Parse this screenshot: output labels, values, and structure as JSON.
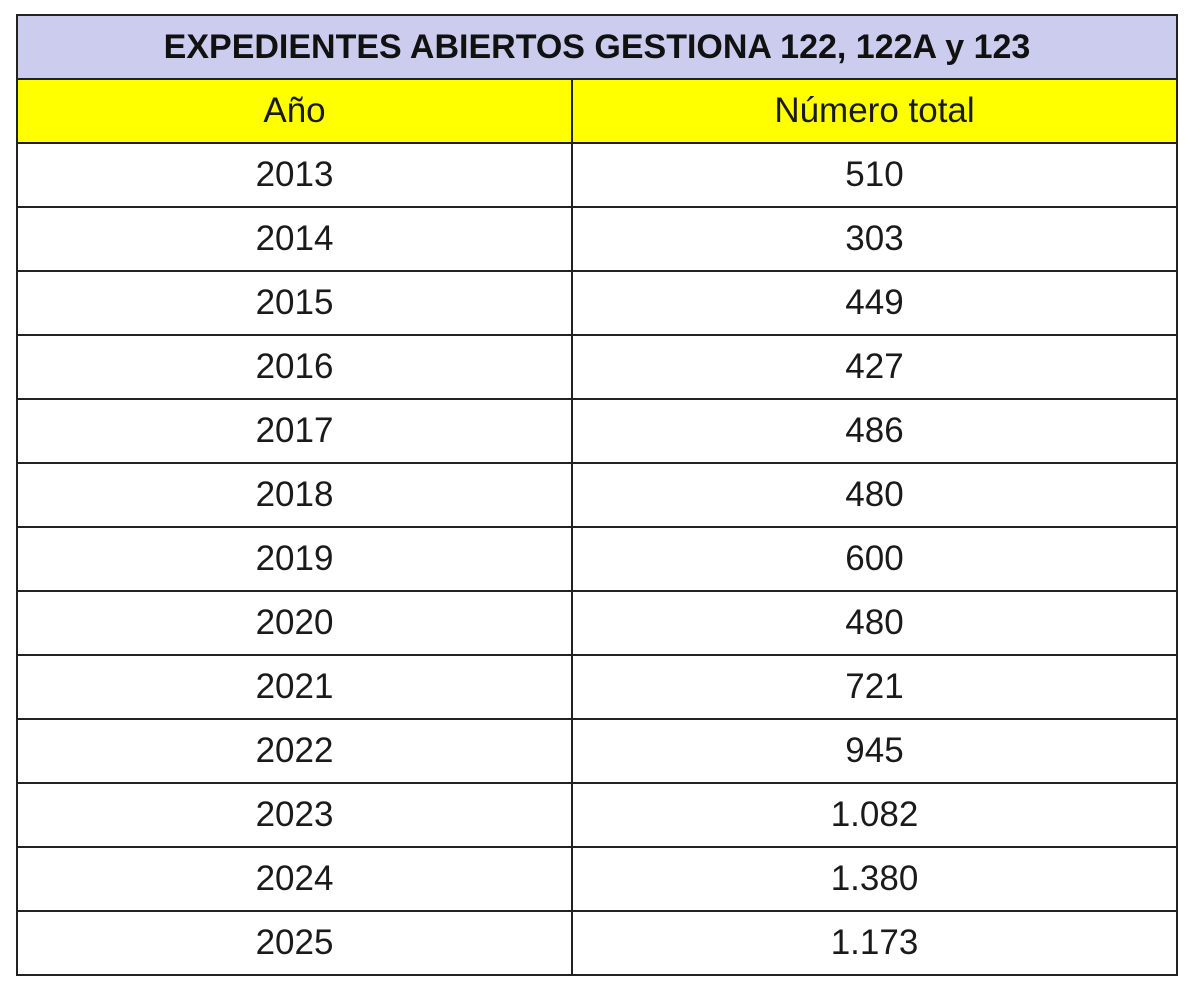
{
  "table": {
    "title": "EXPEDIENTES ABIERTOS GESTIONA 122, 122A y 123",
    "headers": [
      "Año",
      "Número total"
    ],
    "rows": [
      [
        "2013",
        "510"
      ],
      [
        "2014",
        "303"
      ],
      [
        "2015",
        "449"
      ],
      [
        "2016",
        "427"
      ],
      [
        "2017",
        "486"
      ],
      [
        "2018",
        "480"
      ],
      [
        "2019",
        "600"
      ],
      [
        "2020",
        "480"
      ],
      [
        "2021",
        "721"
      ],
      [
        "2022",
        "945"
      ],
      [
        "2023",
        "1.082"
      ],
      [
        "2024",
        "1.380"
      ],
      [
        "2025",
        "1.173"
      ]
    ]
  },
  "colors": {
    "title_bg": "#ccccee",
    "header_bg": "#ffff00",
    "border": "#222222"
  }
}
